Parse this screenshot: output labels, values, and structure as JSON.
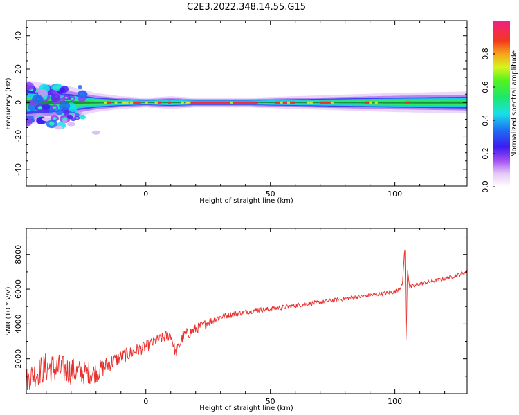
{
  "figure": {
    "title": "C2E3.2022.348.14.55.G15"
  },
  "colors": {
    "snr_line": "#e8312f",
    "axes": "#000000",
    "ridge_center": "#e8312f"
  },
  "colorbar": {
    "label": "Normalized spectral amplitude",
    "ticks": [
      "0.0",
      "0.2",
      "0.4",
      "0.6",
      "0.8"
    ],
    "tick_values": [
      0.0,
      0.2,
      0.4,
      0.6,
      0.8
    ],
    "range": [
      0,
      1
    ],
    "colormap": "rainbow (white-purple-blue-cyan-green-yellow-red-magenta)"
  },
  "chart_data": [
    {
      "type": "heatmap",
      "xlabel": "Height of straight line (km)",
      "ylabel": "Frequency (Hz)",
      "xlim": [
        -48,
        129
      ],
      "ylim": [
        -50,
        49
      ],
      "xticks": [
        "0",
        "50",
        "100"
      ],
      "xtick_values": [
        0,
        50,
        100
      ],
      "yticks": [
        "40",
        "20",
        "0",
        "-20",
        "-40"
      ],
      "ytick_values": [
        40,
        20,
        0,
        -20,
        -40
      ],
      "ridge": {
        "description": "Spectral energy concentrated near 0 Hz across all heights",
        "center_freq_hz": 0,
        "x": [
          -48,
          -40,
          -30,
          -20,
          -10,
          0,
          10,
          20,
          40,
          60,
          80,
          100,
          129
        ],
        "halfwidth_hz": [
          7,
          6,
          5,
          3,
          2,
          1.5,
          2,
          1.5,
          1.5,
          2,
          2.5,
          3,
          3.5
        ],
        "scatter_region": {
          "x": [
            -48,
            -25
          ],
          "freq_hz": [
            -14,
            10
          ]
        }
      }
    },
    {
      "type": "line",
      "xlabel": "Height of straight line (km)",
      "ylabel": "SNR (10 * v/v)",
      "xlim": [
        -48,
        129
      ],
      "ylim": [
        0,
        9500
      ],
      "xticks": [
        "0",
        "50",
        "100"
      ],
      "xtick_values": [
        0,
        50,
        100
      ],
      "yticks": [
        "2000",
        "4000",
        "6000",
        "8000"
      ],
      "ytick_values": [
        2000,
        4000,
        6000,
        8000
      ],
      "series": [
        {
          "x": [
            -48,
            -45,
            -40,
            -35,
            -30,
            -25,
            -20,
            -15,
            -10,
            -5,
            0,
            5,
            10,
            12,
            15,
            20,
            25,
            30,
            35,
            40,
            45,
            50,
            55,
            60,
            65,
            70,
            75,
            80,
            85,
            90,
            95,
            100,
            103,
            104,
            104.5,
            105,
            106,
            110,
            115,
            120,
            125,
            129
          ],
          "values": [
            800,
            1100,
            1500,
            1400,
            1300,
            1200,
            1200,
            1700,
            2100,
            2400,
            2700,
            3100,
            3400,
            2300,
            3300,
            3700,
            4100,
            4400,
            4550,
            4700,
            4800,
            4850,
            4950,
            5050,
            5150,
            5250,
            5350,
            5450,
            5550,
            5650,
            5750,
            5850,
            6200,
            8500,
            2600,
            7200,
            6100,
            6300,
            6450,
            6600,
            6800,
            7000
          ],
          "noise_amplitude": [
            700,
            800,
            900,
            900,
            800,
            700,
            600,
            500,
            400,
            400,
            350,
            300,
            350,
            300,
            350,
            300,
            250,
            200,
            180,
            160,
            150,
            140,
            140,
            130,
            130,
            120,
            120,
            120,
            120,
            120,
            120,
            120,
            120,
            0,
            0,
            0,
            120,
            120,
            110,
            110,
            110,
            110
          ]
        }
      ]
    }
  ]
}
